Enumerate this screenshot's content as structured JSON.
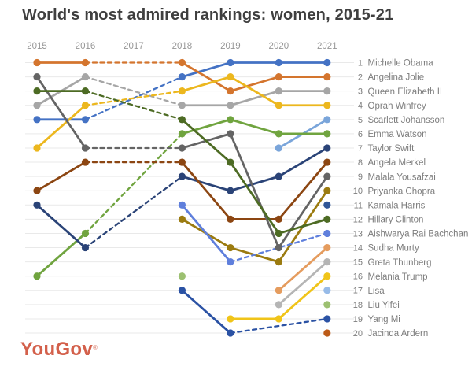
{
  "title": "World's most admired rankings: women, 2015-21",
  "logo": {
    "text": "YouGov",
    "mark": "®",
    "color": "#d3604b"
  },
  "colors": {
    "background": "#ffffff",
    "title_text": "#3f3f3f",
    "year_label": "#969696",
    "rank_label": "#7d7d7d",
    "gridline": "#e9e9e9",
    "logo": "#d3604b"
  },
  "chart_data": {
    "type": "line",
    "subtype": "bump-ranking",
    "years": [
      2015,
      2016,
      2017,
      2018,
      2019,
      2020,
      2021
    ],
    "missing_years": [
      2017
    ],
    "rank_axis": {
      "min": 1,
      "max": 20,
      "inverted": true
    },
    "grid": true,
    "legend_position": "right-rank-list",
    "series": [
      {
        "rank": 1,
        "name": "Michelle Obama",
        "color": "#4472c4",
        "points": [
          [
            2015,
            5
          ],
          [
            2016,
            5
          ],
          [
            2018,
            2
          ],
          [
            2019,
            1
          ],
          [
            2020,
            1
          ],
          [
            2021,
            1
          ]
        ]
      },
      {
        "rank": 2,
        "name": "Angelina Jolie",
        "color": "#d4752e",
        "points": [
          [
            2015,
            1
          ],
          [
            2016,
            1
          ],
          [
            2018,
            1
          ],
          [
            2019,
            3
          ],
          [
            2020,
            2
          ],
          [
            2021,
            2
          ]
        ]
      },
      {
        "rank": 3,
        "name": "Queen Elizabeth II",
        "color": "#a6a6a6",
        "points": [
          [
            2015,
            4
          ],
          [
            2016,
            2
          ],
          [
            2018,
            4
          ],
          [
            2019,
            4
          ],
          [
            2020,
            3
          ],
          [
            2021,
            3
          ]
        ]
      },
      {
        "rank": 4,
        "name": "Oprah Winfrey",
        "color": "#ecb71e",
        "points": [
          [
            2015,
            7
          ],
          [
            2016,
            4
          ],
          [
            2018,
            3
          ],
          [
            2019,
            2
          ],
          [
            2020,
            4
          ],
          [
            2021,
            4
          ]
        ]
      },
      {
        "rank": 5,
        "name": "Scarlett Johansson",
        "color": "#7aa5da",
        "points": [
          [
            2020,
            7
          ],
          [
            2021,
            5
          ]
        ]
      },
      {
        "rank": 6,
        "name": "Emma Watson",
        "color": "#70a43f",
        "points": [
          [
            2015,
            16
          ],
          [
            2016,
            13
          ],
          [
            2018,
            6
          ],
          [
            2019,
            5
          ],
          [
            2020,
            6
          ],
          [
            2021,
            6
          ]
        ]
      },
      {
        "rank": 7,
        "name": "Taylor Swift",
        "color": "#2a4377",
        "points": [
          [
            2015,
            11
          ],
          [
            2016,
            14
          ],
          [
            2018,
            9
          ],
          [
            2019,
            10
          ],
          [
            2020,
            9
          ],
          [
            2021,
            7
          ]
        ]
      },
      {
        "rank": 8,
        "name": "Angela Merkel",
        "color": "#8c4612",
        "points": [
          [
            2015,
            10
          ],
          [
            2016,
            8
          ],
          [
            2018,
            8
          ],
          [
            2019,
            12
          ],
          [
            2020,
            12
          ],
          [
            2021,
            8
          ]
        ]
      },
      {
        "rank": 9,
        "name": "Malala Yousafzai",
        "color": "#646464",
        "points": [
          [
            2015,
            2
          ],
          [
            2016,
            7
          ],
          [
            2018,
            7
          ],
          [
            2019,
            6
          ],
          [
            2020,
            14
          ],
          [
            2021,
            9
          ]
        ]
      },
      {
        "rank": 10,
        "name": "Priyanka Chopra",
        "color": "#9b7b10",
        "points": [
          [
            2018,
            12
          ],
          [
            2019,
            14
          ],
          [
            2020,
            15
          ],
          [
            2021,
            10
          ]
        ]
      },
      {
        "rank": 11,
        "name": "Kamala Harris",
        "color": "#2f5597",
        "points": [
          [
            2021,
            11
          ]
        ]
      },
      {
        "rank": 12,
        "name": "Hillary Clinton",
        "color": "#4d6b24",
        "points": [
          [
            2015,
            3
          ],
          [
            2016,
            3
          ],
          [
            2018,
            5
          ],
          [
            2019,
            8
          ],
          [
            2020,
            13
          ],
          [
            2021,
            12
          ]
        ]
      },
      {
        "rank": 13,
        "name": "Aishwarya Rai Bachchan",
        "color": "#5f7fdc",
        "points": [
          [
            2018,
            11
          ],
          [
            2019,
            15
          ],
          [
            2021,
            13
          ]
        ]
      },
      {
        "rank": 14,
        "name": "Sudha Murty",
        "color": "#e59c5e",
        "points": [
          [
            2020,
            17
          ],
          [
            2021,
            14
          ]
        ]
      },
      {
        "rank": 15,
        "name": "Greta Thunberg",
        "color": "#b5b5b5",
        "points": [
          [
            2020,
            18
          ],
          [
            2021,
            15
          ]
        ]
      },
      {
        "rank": 16,
        "name": "Melania Trump",
        "color": "#f0c419",
        "points": [
          [
            2019,
            19
          ],
          [
            2020,
            19
          ],
          [
            2021,
            16
          ]
        ]
      },
      {
        "rank": 17,
        "name": "Lisa",
        "color": "#97bbe8",
        "points": [
          [
            2021,
            17
          ]
        ]
      },
      {
        "rank": 18,
        "name": "Liu Yifei",
        "color": "#9cc071",
        "points": [
          [
            2018,
            16
          ],
          [
            2021,
            18
          ]
        ]
      },
      {
        "rank": 19,
        "name": "Yang Mi",
        "color": "#2b52a4",
        "points": [
          [
            2018,
            17
          ],
          [
            2019,
            20
          ],
          [
            2021,
            19
          ]
        ]
      },
      {
        "rank": 20,
        "name": "Jacinda Ardern",
        "color": "#bc5a17",
        "points": [
          [
            2021,
            20
          ]
        ]
      }
    ],
    "line_style_rules": {
      "adjacent_years": "solid",
      "skip_one_year": "dashed",
      "skip_two_or_more_years": "no line (isolated dots)"
    }
  }
}
